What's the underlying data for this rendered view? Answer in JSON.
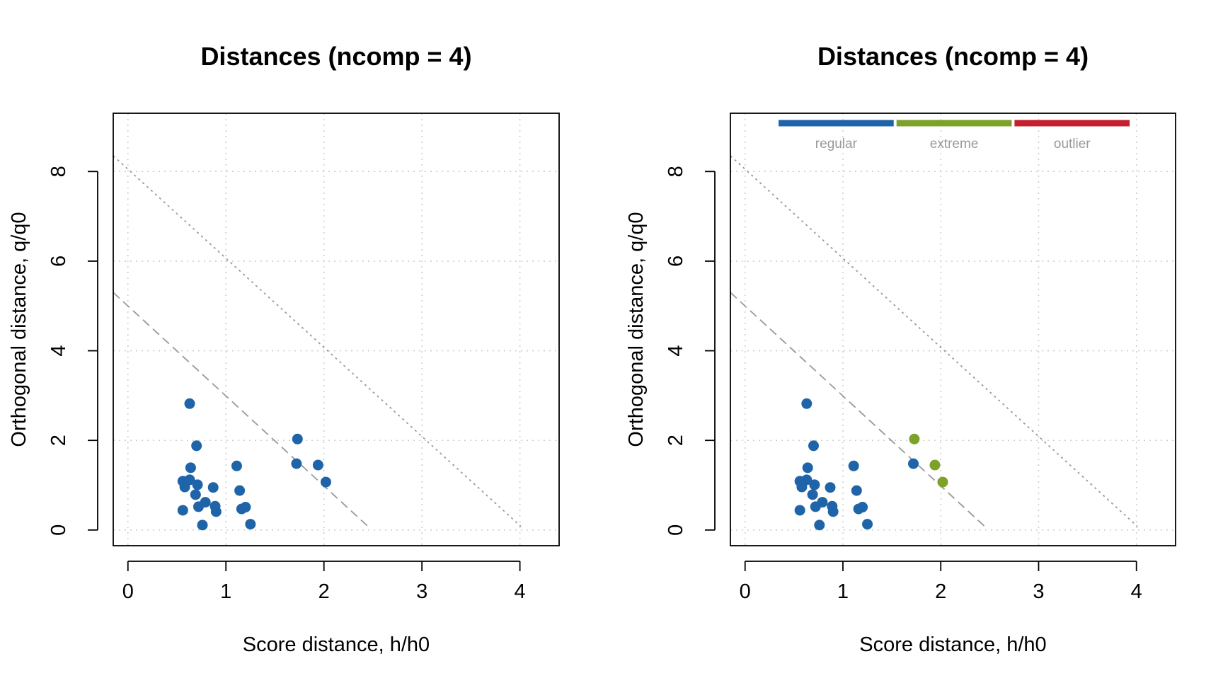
{
  "colors": {
    "regular": "#1f64a8",
    "extreme": "#7da22a",
    "outlier": "#c4202f",
    "grid": "#cccccc",
    "line": "#999999",
    "legend_text": "#999999"
  },
  "chart_data": [
    {
      "type": "scatter",
      "title": "Distances (ncomp = 4)",
      "xlabel": "Score distance, h/h0",
      "ylabel": "Orthogonal distance, q/q0",
      "xlim": [
        -0.15,
        4.4
      ],
      "ylim": [
        -0.35,
        9.3
      ],
      "xticks": [
        "0",
        "1",
        "2",
        "3",
        "4"
      ],
      "yticks": [
        "0",
        "2",
        "4",
        "6",
        "8"
      ],
      "grid": true,
      "lines": [
        {
          "style": "dashed",
          "x": [
            -0.15,
            2.45
          ],
          "y": [
            5.3,
            0.08
          ]
        },
        {
          "style": "dotted",
          "x": [
            -0.15,
            4.01
          ],
          "y": [
            8.35,
            0.08
          ]
        }
      ],
      "legend": null,
      "series": [
        {
          "name": "",
          "points": [
            {
              "x": 0.63,
              "y": 2.82
            },
            {
              "x": 0.7,
              "y": 1.88
            },
            {
              "x": 0.64,
              "y": 1.39
            },
            {
              "x": 0.56,
              "y": 1.09
            },
            {
              "x": 0.63,
              "y": 1.12
            },
            {
              "x": 0.58,
              "y": 0.96
            },
            {
              "x": 0.71,
              "y": 1.01
            },
            {
              "x": 0.87,
              "y": 0.95
            },
            {
              "x": 0.69,
              "y": 0.79
            },
            {
              "x": 0.79,
              "y": 0.62
            },
            {
              "x": 0.72,
              "y": 0.52
            },
            {
              "x": 0.89,
              "y": 0.53
            },
            {
              "x": 0.9,
              "y": 0.41
            },
            {
              "x": 0.56,
              "y": 0.44
            },
            {
              "x": 0.76,
              "y": 0.11
            },
            {
              "x": 1.11,
              "y": 1.43
            },
            {
              "x": 1.14,
              "y": 0.88
            },
            {
              "x": 1.16,
              "y": 0.47
            },
            {
              "x": 1.2,
              "y": 0.51
            },
            {
              "x": 1.25,
              "y": 0.13
            },
            {
              "x": 1.73,
              "y": 2.03
            },
            {
              "x": 1.72,
              "y": 1.48
            },
            {
              "x": 1.94,
              "y": 1.45
            },
            {
              "x": 2.02,
              "y": 1.07
            }
          ]
        }
      ]
    },
    {
      "type": "scatter",
      "title": "Distances (ncomp = 4)",
      "xlabel": "Score distance, h/h0",
      "ylabel": "Orthogonal distance, q/q0",
      "xlim": [
        -0.15,
        4.4
      ],
      "ylim": [
        -0.35,
        9.3
      ],
      "xticks": [
        "0",
        "1",
        "2",
        "3",
        "4"
      ],
      "yticks": [
        "0",
        "2",
        "4",
        "6",
        "8"
      ],
      "grid": true,
      "lines": [
        {
          "style": "dashed",
          "x": [
            -0.15,
            2.45
          ],
          "y": [
            5.3,
            0.08
          ]
        },
        {
          "style": "dotted",
          "x": [
            -0.15,
            4.01
          ],
          "y": [
            8.35,
            0.08
          ]
        }
      ],
      "legend": {
        "placement": "top",
        "entries": [
          "regular",
          "extreme",
          "outlier"
        ]
      },
      "series": [
        {
          "name": "regular",
          "points": [
            {
              "x": 0.63,
              "y": 2.82
            },
            {
              "x": 0.7,
              "y": 1.88
            },
            {
              "x": 0.64,
              "y": 1.39
            },
            {
              "x": 0.56,
              "y": 1.09
            },
            {
              "x": 0.63,
              "y": 1.12
            },
            {
              "x": 0.58,
              "y": 0.96
            },
            {
              "x": 0.71,
              "y": 1.01
            },
            {
              "x": 0.87,
              "y": 0.95
            },
            {
              "x": 0.69,
              "y": 0.79
            },
            {
              "x": 0.79,
              "y": 0.62
            },
            {
              "x": 0.72,
              "y": 0.52
            },
            {
              "x": 0.89,
              "y": 0.53
            },
            {
              "x": 0.9,
              "y": 0.41
            },
            {
              "x": 0.56,
              "y": 0.44
            },
            {
              "x": 0.76,
              "y": 0.11
            },
            {
              "x": 1.11,
              "y": 1.43
            },
            {
              "x": 1.14,
              "y": 0.88
            },
            {
              "x": 1.16,
              "y": 0.47
            },
            {
              "x": 1.2,
              "y": 0.51
            },
            {
              "x": 1.25,
              "y": 0.13
            },
            {
              "x": 1.72,
              "y": 1.48
            }
          ]
        },
        {
          "name": "extreme",
          "points": [
            {
              "x": 1.73,
              "y": 2.03
            },
            {
              "x": 1.94,
              "y": 1.45
            },
            {
              "x": 2.02,
              "y": 1.07
            }
          ]
        },
        {
          "name": "outlier",
          "points": []
        }
      ]
    }
  ]
}
